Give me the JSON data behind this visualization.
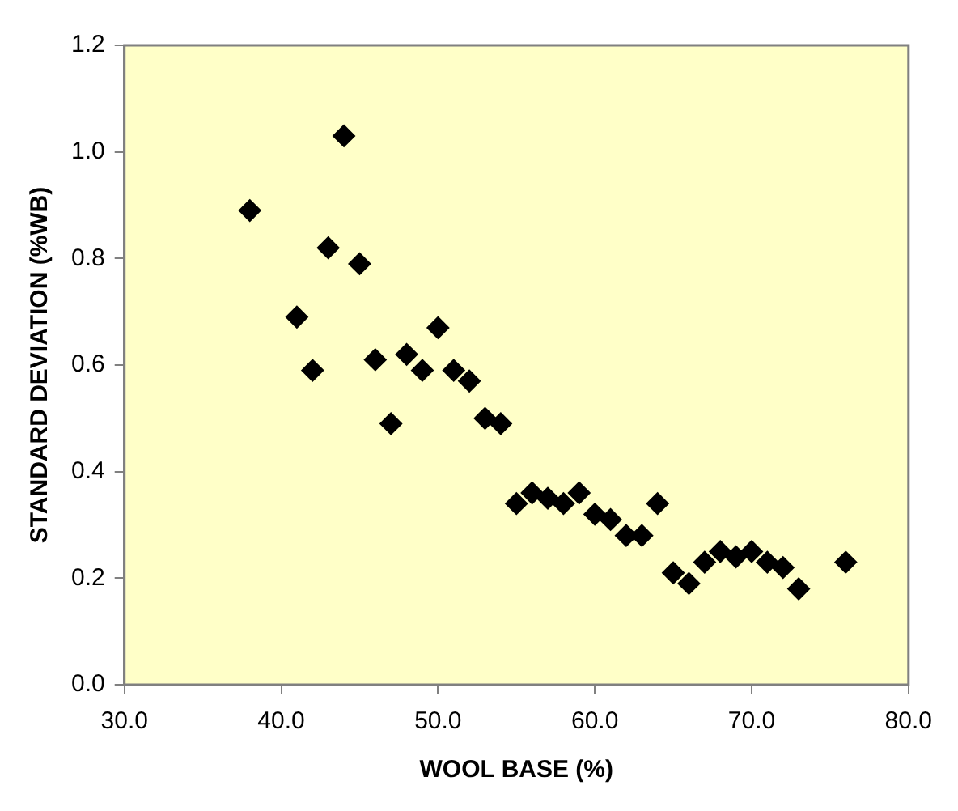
{
  "chart_data": {
    "type": "scatter",
    "xlabel": "WOOL BASE (%)",
    "ylabel": "STANDARD DEVIATION (%WB)",
    "x": [
      38,
      44,
      43,
      45,
      41,
      42,
      46,
      48,
      49,
      50,
      47,
      51,
      52,
      53,
      54,
      55,
      56,
      57,
      58,
      59,
      60,
      61,
      62,
      63,
      64,
      65,
      66,
      67,
      68,
      69,
      70,
      71,
      72,
      73,
      76
    ],
    "series": [
      {
        "color": "#000000",
        "values": [
          0.89,
          1.03,
          0.82,
          0.79,
          0.69,
          0.59,
          0.61,
          0.62,
          0.59,
          0.67,
          0.49,
          0.59,
          0.57,
          0.5,
          0.49,
          0.34,
          0.36,
          0.35,
          0.34,
          0.36,
          0.32,
          0.31,
          0.28,
          0.28,
          0.34,
          0.21,
          0.19,
          0.23,
          0.25,
          0.24,
          0.25,
          0.23,
          0.22,
          0.18,
          0.23
        ]
      }
    ],
    "xlim": [
      30,
      80
    ],
    "xticks": [
      {
        "value": 30,
        "label": "30.0"
      },
      {
        "value": 40,
        "label": "40.0"
      },
      {
        "value": 50,
        "label": "50.0"
      },
      {
        "value": 60,
        "label": "60.0"
      },
      {
        "value": 70,
        "label": "70.0"
      },
      {
        "value": 80,
        "label": "80.0"
      }
    ],
    "ylim": [
      0,
      1.2
    ],
    "yticks": [
      {
        "value": 0,
        "label": "0.0"
      },
      {
        "value": 0.2,
        "label": "0.2"
      },
      {
        "value": 0.4,
        "label": "0.4"
      },
      {
        "value": 0.6,
        "label": "0.6"
      },
      {
        "value": 0.8,
        "label": "0.8"
      },
      {
        "value": 1.0,
        "label": "1.0"
      },
      {
        "value": 1.2,
        "label": "1.2"
      }
    ],
    "marker": "diamond",
    "grid": false,
    "legend": false
  }
}
